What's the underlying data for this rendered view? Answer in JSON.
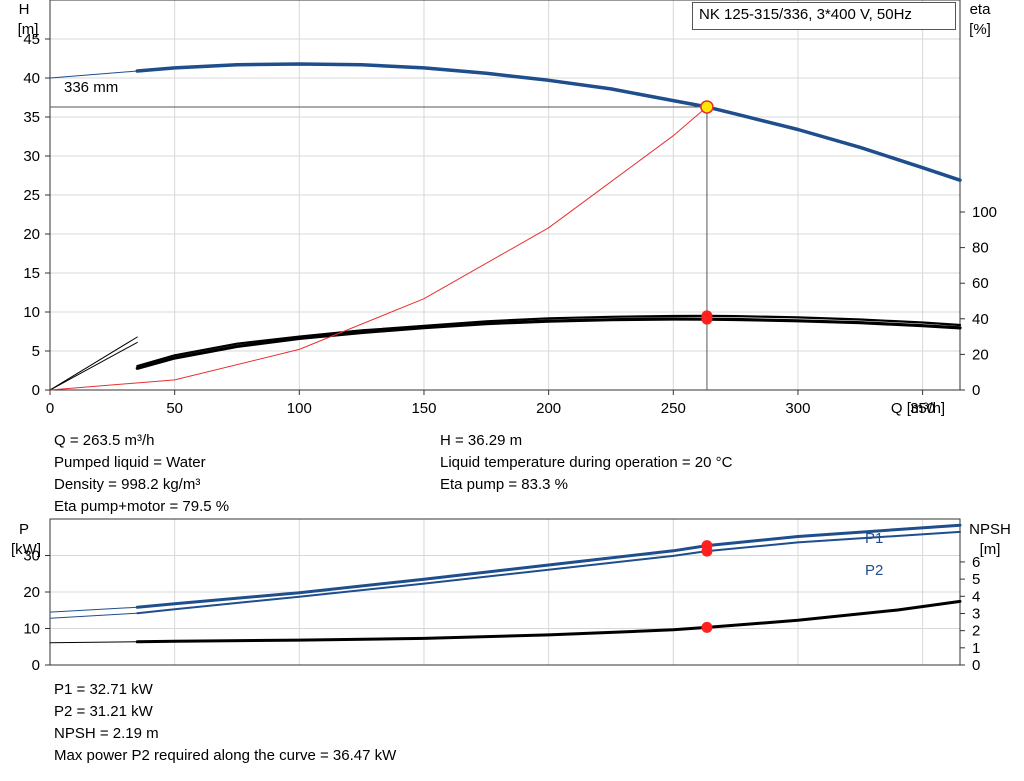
{
  "chart_data": [
    {
      "type": "line",
      "title": "NK 125-315/336, 3*400 V, 50Hz",
      "xlabel": "Q [m³/h]",
      "ylabel_left": [
        "H",
        "[m]"
      ],
      "ylabel_right": [
        "eta",
        "[%]"
      ],
      "xlim": [
        0,
        365
      ],
      "ylim_left": [
        0,
        50
      ],
      "ylim_right": [
        0,
        100
      ],
      "xticks": [
        0,
        50,
        100,
        150,
        200,
        250,
        300,
        350
      ],
      "yticks_left": [
        0,
        5,
        10,
        15,
        20,
        25,
        30,
        35,
        40,
        45
      ],
      "yticks_right": [
        0,
        20,
        40,
        60,
        80,
        100
      ],
      "curve_label": "336 mm",
      "series": [
        {
          "axis": "left",
          "color": "#1f4e8c",
          "width": 3.5,
          "x": [
            35,
            50,
            75,
            100,
            125,
            150,
            175,
            200,
            225,
            250,
            263.5,
            275,
            300,
            325,
            350,
            365
          ],
          "y": [
            40.9,
            41.3,
            41.7,
            41.8,
            41.7,
            41.3,
            40.6,
            39.7,
            38.6,
            37.1,
            36.29,
            35.4,
            33.4,
            31.1,
            28.5,
            26.9
          ]
        },
        {
          "axis": "left",
          "color": "#1f4e8c",
          "width": 1,
          "x": [
            0,
            35
          ],
          "y": [
            40,
            40.9
          ]
        },
        {
          "axis": "right",
          "color": "#000000",
          "width": 2.2,
          "x": [
            35,
            50,
            75,
            100,
            125,
            150,
            175,
            200,
            225,
            250,
            263.5,
            275,
            300,
            325,
            350,
            365
          ],
          "y": [
            13.5,
            19.5,
            26,
            30,
            33.5,
            36,
            38.6,
            40.3,
            41.1,
            41.6,
            41.65,
            41.5,
            40.8,
            39.6,
            37.9,
            36.5
          ]
        },
        {
          "axis": "right",
          "color": "#000000",
          "width": 3.2,
          "x": [
            35,
            50,
            75,
            100,
            125,
            150,
            175,
            200,
            225,
            250,
            263.5,
            275,
            300,
            325,
            350,
            365
          ],
          "y": [
            12.2,
            18,
            24.5,
            29,
            32.3,
            35,
            37.3,
            38.7,
            39.5,
            39.9,
            39.8,
            39.6,
            38.9,
            37.8,
            36.1,
            34.9
          ]
        },
        {
          "axis": "left",
          "color": "#000000",
          "width": 1,
          "x": [
            0,
            35
          ],
          "y": [
            0,
            6.8
          ]
        },
        {
          "axis": "left",
          "color": "#000000",
          "width": 1,
          "x": [
            0,
            35
          ],
          "y": [
            0,
            6.1
          ]
        },
        {
          "axis": "left",
          "color": "#e83030",
          "width": 1,
          "x": [
            0,
            50,
            100,
            150,
            200,
            250,
            263.5
          ],
          "y": [
            0,
            1.3,
            5.2,
            11.7,
            20.8,
            32.6,
            36.29
          ]
        }
      ],
      "operating_point": {
        "Q": 263.5,
        "H": 36.29,
        "eta_pump_motor": 79.5,
        "eta_pump": 83.3
      }
    },
    {
      "type": "line",
      "xlim": [
        0,
        365
      ],
      "ylabel_left": [
        "P",
        "[kW]"
      ],
      "ylabel_right": [
        "NPSH",
        "[m]"
      ],
      "ylim_left": [
        0,
        40
      ],
      "ylim_right": [
        0,
        8.5
      ],
      "yticks_left": [
        0,
        10,
        20,
        30
      ],
      "yticks_right": [
        0,
        1,
        2,
        3,
        4,
        5,
        6
      ],
      "legend": [
        "P1",
        "P2"
      ],
      "series": [
        {
          "name": "P1",
          "axis": "left",
          "color": "#1f4e8c",
          "width": 3,
          "x": [
            35,
            50,
            100,
            150,
            200,
            250,
            263.5,
            300,
            365
          ],
          "y": [
            15.8,
            16.8,
            19.8,
            23.5,
            27.4,
            31.3,
            32.71,
            35.2,
            38.3
          ]
        },
        {
          "name": "P2",
          "axis": "left",
          "color": "#1f4e8c",
          "width": 2,
          "x": [
            35,
            50,
            100,
            150,
            200,
            250,
            263.5,
            300,
            365
          ],
          "y": [
            14.2,
            15.3,
            18.7,
            22.3,
            26.1,
            29.9,
            31.21,
            33.6,
            36.47
          ]
        },
        {
          "axis": "left",
          "color": "#1f4e8c",
          "width": 1,
          "x": [
            0,
            35
          ],
          "y": [
            14.5,
            15.8
          ]
        },
        {
          "axis": "left",
          "color": "#1f4e8c",
          "width": 1,
          "x": [
            0,
            35
          ],
          "y": [
            12.8,
            14.2
          ]
        },
        {
          "axis": "right",
          "color": "#000000",
          "width": 3,
          "x": [
            35,
            50,
            100,
            150,
            200,
            250,
            263.5,
            300,
            340,
            365
          ],
          "y": [
            1.35,
            1.38,
            1.45,
            1.55,
            1.75,
            2.05,
            2.19,
            2.6,
            3.2,
            3.7
          ]
        },
        {
          "axis": "right",
          "color": "#000000",
          "width": 1,
          "x": [
            0,
            35
          ],
          "y": [
            1.3,
            1.35
          ]
        }
      ],
      "operating_point": {
        "P1": 32.71,
        "P2": 31.21,
        "NPSH": 2.19
      }
    }
  ],
  "info_upper": {
    "q": "Q = 263.5 m³/h",
    "liquid": "Pumped liquid = Water",
    "density": "Density = 998.2 kg/m³",
    "eta_pm": "Eta pump+motor = 79.5 %",
    "h": "H = 36.29 m",
    "temp": "Liquid temperature during operation = 20 °C",
    "eta_p": "Eta pump = 83.3 %"
  },
  "info_lower": {
    "p1": "P1 = 32.71 kW",
    "p2": "P2 = 31.21 kW",
    "npsh": "NPSH = 2.19 m",
    "maxp2": "Max power P2 required along the curve = 36.47 kW"
  }
}
